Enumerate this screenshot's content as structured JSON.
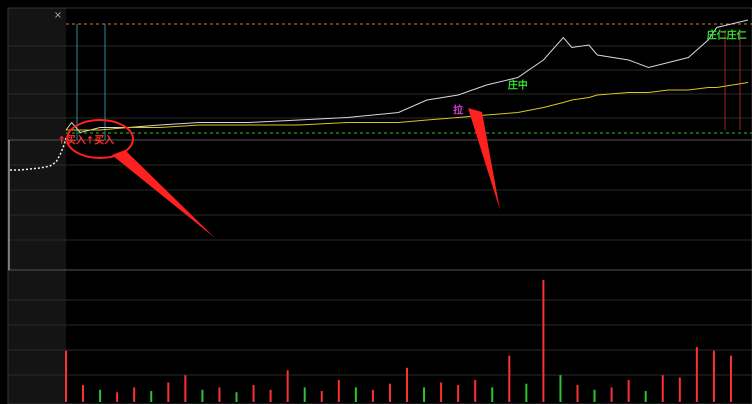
{
  "close_label": "×",
  "chart_data": [
    {
      "type": "line",
      "x": [
        0,
        2,
        5,
        12,
        22,
        33,
        47,
        64,
        82,
        99,
        117,
        127,
        138,
        148,
        159,
        168,
        175,
        178,
        184,
        187,
        198,
        205,
        212,
        219,
        226,
        229,
        240
      ],
      "xlim": [
        0,
        240
      ],
      "ylim": [
        0,
        100
      ],
      "series": [
        {
          "color": "#d8d8d8",
          "values": [
            56,
            59,
            55,
            57,
            57,
            58,
            59,
            59,
            60,
            61,
            63,
            68,
            70,
            74,
            77,
            84,
            93,
            89,
            90,
            86,
            84,
            81,
            83,
            85,
            92,
            97,
            100
          ]
        },
        {
          "color": "#d6c81e",
          "values": [
            56,
            56,
            56,
            56,
            57,
            57,
            58,
            58,
            58,
            59,
            59,
            60,
            61,
            62,
            63,
            65,
            67,
            68,
            69,
            70,
            71,
            71,
            72,
            72,
            73,
            73,
            75
          ]
        }
      ],
      "annotations": [
        {
          "text": "↑买入",
          "x": 2,
          "value": 55,
          "color": "#ff3030"
        },
        {
          "text": "↑买入",
          "x": 12,
          "value": 55,
          "color": "#ff3030"
        },
        {
          "text": "拉",
          "x": 138,
          "value": 67,
          "color": "#d040d0"
        },
        {
          "text": "庄中",
          "x": 159,
          "value": 77,
          "color": "#30e030"
        },
        {
          "text": "庄仁",
          "x": 229,
          "value": 97,
          "color": "#30e030"
        },
        {
          "text": "庄仁",
          "x": 236,
          "value": 97,
          "color": "#30e030"
        }
      ]
    },
    {
      "type": "bar",
      "x": [
        0,
        6,
        12,
        18,
        24,
        30,
        36,
        42,
        48,
        54,
        60,
        66,
        72,
        78,
        84,
        90,
        96,
        102,
        108,
        114,
        120,
        126,
        132,
        138,
        144,
        150,
        156,
        162,
        168,
        174,
        180,
        186,
        192,
        198,
        204,
        210,
        216,
        222,
        228,
        234
      ],
      "xlim": [
        0,
        240
      ],
      "ylim": [
        0,
        100
      ],
      "values": [
        42,
        14,
        10,
        8,
        12,
        9,
        16,
        22,
        10,
        12,
        8,
        14,
        10,
        26,
        12,
        9,
        18,
        12,
        10,
        15,
        28,
        12,
        16,
        14,
        18,
        12,
        38,
        15,
        100,
        22,
        14,
        10,
        12,
        18,
        9,
        22,
        20,
        45,
        42,
        38
      ],
      "colors": [
        "#ff3030",
        "#ff3030",
        "#30c030",
        "#ff3030",
        "#ff3030",
        "#30c030",
        "#ff3030",
        "#ff3030",
        "#30c030",
        "#ff3030",
        "#30c030",
        "#ff3030",
        "#ff3030",
        "#ff3030",
        "#30c030",
        "#ff3030",
        "#ff3030",
        "#30c030",
        "#ff3030",
        "#ff3030",
        "#ff3030",
        "#30c030",
        "#ff3030",
        "#ff3030",
        "#ff3030",
        "#30c030",
        "#ff3030",
        "#30c030",
        "#ff3030",
        "#30c030",
        "#ff3030",
        "#30c030",
        "#ff3030",
        "#ff3030",
        "#30c030",
        "#ff3030",
        "#ff3030",
        "#ff3030",
        "#ff3030",
        "#ff3030"
      ]
    }
  ]
}
